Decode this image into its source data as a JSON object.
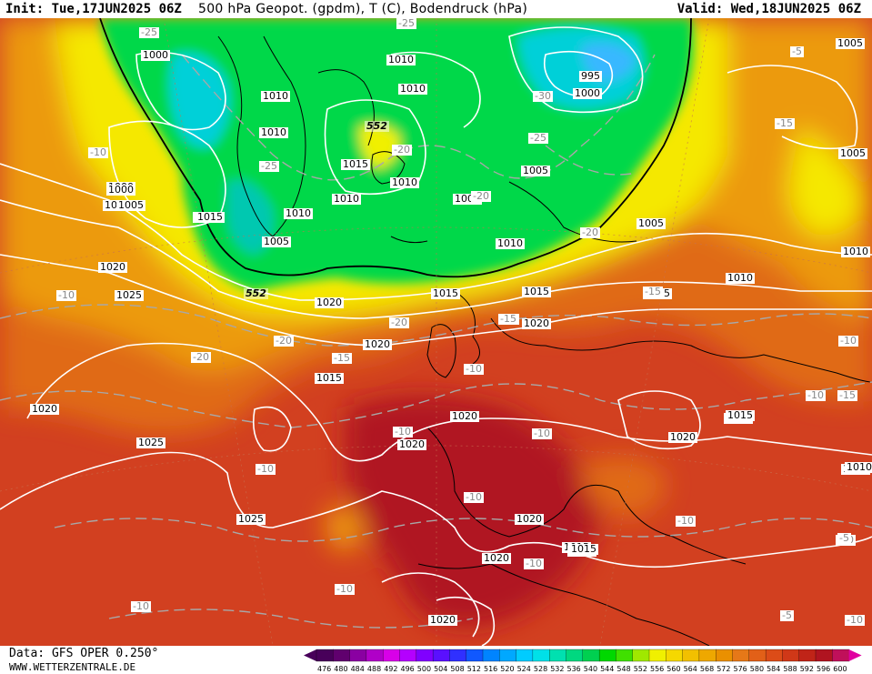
{
  "header": {
    "init": "Init: Tue,17JUN2025 06Z",
    "title": "500 hPa Geopot. (gpdm), T (C), Bodendruck (hPa)",
    "valid": "Valid: Wed,18JUN2025 06Z"
  },
  "footer": {
    "data_source": "Data: GFS OPER 0.250°",
    "website": "WWW.WETTERZENTRALE.DE"
  },
  "colors": {
    "geopot_low": "#00d84a",
    "geopot_low_blue": "#00d0d8",
    "yellow": "#f5e800",
    "orange": "#ec9a10",
    "dark_orange": "#e06a18",
    "red": "#d24020",
    "dark_red": "#b01820",
    "isobar": "#ffffff",
    "isotherm": "#a8a8a8",
    "coastline": "#000000"
  },
  "legend": {
    "levels": [
      "476",
      "480",
      "484",
      "488",
      "492",
      "496",
      "500",
      "504",
      "508",
      "512",
      "516",
      "520",
      "524",
      "528",
      "532",
      "536",
      "540",
      "544",
      "548",
      "552",
      "556",
      "560",
      "564",
      "568",
      "572",
      "576",
      "580",
      "584",
      "588",
      "592",
      "596",
      "600"
    ],
    "colors": [
      "#48005a",
      "#60006e",
      "#8a00a2",
      "#b000c8",
      "#d800e8",
      "#b400ff",
      "#8000ff",
      "#5a10ff",
      "#3030ff",
      "#1058ff",
      "#0084ff",
      "#00a8ff",
      "#00ccff",
      "#00e0e8",
      "#00e0b0",
      "#00d880",
      "#00d050",
      "#00d800",
      "#40e000",
      "#a0e800",
      "#f0f000",
      "#f5d800",
      "#f2c000",
      "#eea800",
      "#ea9000",
      "#e67818",
      "#e26018",
      "#dc4c18",
      "#d03818",
      "#c02418",
      "#b01420",
      "#c0105a"
    ],
    "arrow_left": "#48005a",
    "arrow_right": "#e000a0"
  },
  "map": {
    "pressure_labels": [
      "1000",
      "1005",
      "1010",
      "1010",
      "1010",
      "1010",
      "995",
      "1000",
      "1000",
      "1005",
      "1005",
      "1010",
      "1010",
      "1015",
      "1010",
      "1005",
      "1010",
      "1005",
      "1005",
      "1010",
      "1015",
      "1005",
      "1000",
      "1005",
      "1010",
      "1015",
      "1020",
      "1020",
      "1025",
      "1020",
      "1020",
      "1015",
      "1015",
      "1015",
      "1020",
      "1025",
      "1020",
      "1015",
      "1010",
      "1015",
      "1020",
      "1025",
      "1020",
      "1020",
      "1015",
      "1010",
      "1020",
      "1020",
      "1015",
      "1010",
      "1015"
    ],
    "temperature_labels": [
      "-25",
      "-25",
      "-25",
      "-30",
      "-25",
      "-20",
      "-20",
      "-20",
      "-15",
      "-10",
      "-15",
      "-15",
      "-10",
      "-20",
      "-20",
      "-20",
      "-15",
      "-15",
      "-10",
      "-10",
      "-10",
      "-10",
      "-10",
      "-10",
      "-10",
      "-10",
      "-10",
      "-10",
      "-15",
      "-10",
      "-5",
      "-5",
      "-5",
      "-10",
      "-10"
    ],
    "height_labels": [
      "552",
      "552"
    ]
  }
}
